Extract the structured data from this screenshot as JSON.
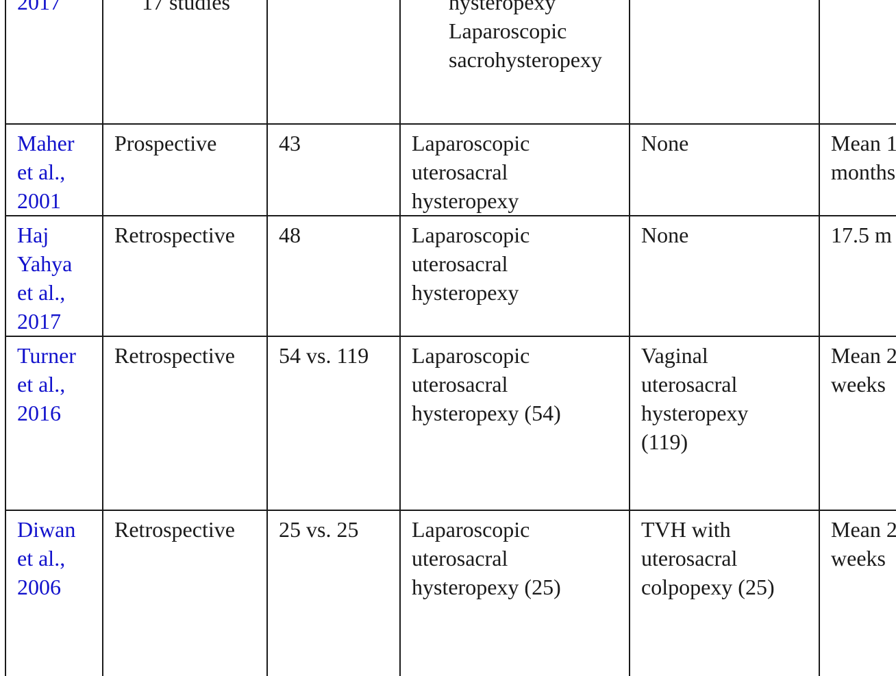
{
  "rows": [
    {
      "author": [
        "2017"
      ],
      "design": [
        "17 studies"
      ],
      "n": [],
      "intervention": [
        "hysteropexy",
        "Laparoscopic",
        "sacrohysteropexy"
      ],
      "comparison": [],
      "followup": []
    },
    {
      "author": [
        "Maher",
        "et al.,",
        "2001"
      ],
      "design": [
        "Prospective"
      ],
      "n": [
        "43"
      ],
      "intervention": [
        "Laparoscopic",
        "uterosacral",
        "hysteropexy"
      ],
      "comparison": [
        "None"
      ],
      "followup": [
        "Mean 1",
        "months"
      ]
    },
    {
      "author": [
        "Haj",
        "Yahya",
        "et al.,",
        "2017"
      ],
      "design": [
        "Retrospective"
      ],
      "n": [
        "48"
      ],
      "intervention": [
        "Laparoscopic",
        "uterosacral",
        "hysteropexy"
      ],
      "comparison": [
        "None"
      ],
      "followup": [
        "17.5 m"
      ]
    },
    {
      "author": [
        "Turner",
        "et al.,",
        "2016"
      ],
      "design": [
        "Retrospective"
      ],
      "n": [
        "54 vs. 119"
      ],
      "intervention": [
        "Laparoscopic",
        "uterosacral",
        "hysteropexy (54)"
      ],
      "comparison": [
        "Vaginal",
        "uterosacral",
        "hysteropexy",
        "(119)"
      ],
      "followup": [
        "Mean 2",
        "weeks"
      ]
    },
    {
      "author": [
        "Diwan",
        "et al.,",
        "2006"
      ],
      "design": [
        "Retrospective"
      ],
      "n": [
        "25 vs. 25"
      ],
      "intervention": [
        "Laparoscopic",
        "uterosacral",
        "hysteropexy (25)"
      ],
      "comparison": [
        "TVH with",
        "uterosacral",
        "colpopexy (25)"
      ],
      "followup": [
        "Mean 2",
        "weeks"
      ]
    }
  ],
  "colors": {
    "link": "#1111cc",
    "text": "#1a1a1a",
    "border": "#1a1a1a",
    "background": "#ffffff"
  }
}
